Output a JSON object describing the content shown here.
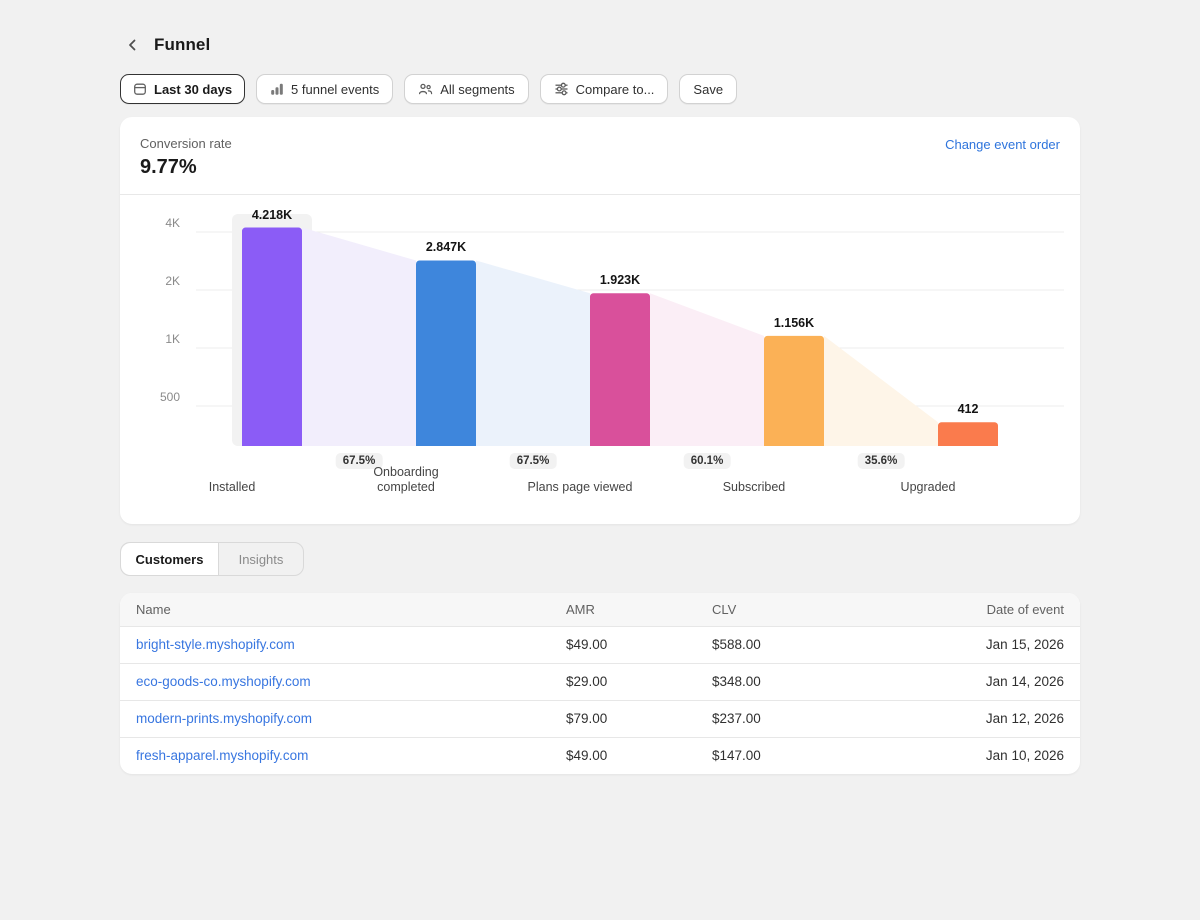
{
  "header": {
    "title": "Funnel"
  },
  "toolbar": {
    "buttons": [
      {
        "label": "Last 30 days",
        "icon": "calendar-icon",
        "active": true
      },
      {
        "label": "5 funnel events",
        "icon": "bar-chart-icon",
        "active": false
      },
      {
        "label": "All segments",
        "icon": "people-icon",
        "active": false
      },
      {
        "label": "Compare to...",
        "icon": "sliders-icon",
        "active": false
      },
      {
        "label": "Save",
        "icon": "",
        "active": false
      }
    ]
  },
  "funnel": {
    "metric_label": "Conversion rate",
    "metric_value": "9.77%",
    "change_order_label": "Change event order",
    "link_color": "#2e74dc"
  },
  "chart_data": {
    "type": "bar",
    "subtype": "funnel",
    "title": "Conversion rate 9.77%",
    "categories": [
      "Installed",
      "Onboarding completed",
      "Plans page viewed",
      "Subscribed",
      "Upgraded"
    ],
    "values": [
      4218,
      2847,
      1923,
      1156,
      412
    ],
    "value_labels": [
      "4.218K",
      "2.847K",
      "1.923K",
      "1.156K",
      "412"
    ],
    "step_conversion_rates": [
      "67.5%",
      "67.5%",
      "60.1%",
      "35.6%"
    ],
    "bar_colors": [
      "#8b5cf6",
      "#3e86dc",
      "#d9509b",
      "#fbb156",
      "#fa7b4d"
    ],
    "area_colors": [
      "#f2eefc",
      "#ebf2fb",
      "#fbeef6",
      "#fef5e8"
    ],
    "y_ticks": [
      "4K",
      "2K",
      "1K",
      "500"
    ],
    "y_tick_values": [
      4000,
      2000,
      1000,
      500
    ],
    "scale": "log2",
    "grid": true,
    "highlighted_index": 0,
    "highlight_color": "#f2f2f2",
    "grid_color": "#ececec"
  },
  "tabs": [
    {
      "label": "Customers",
      "active": true
    },
    {
      "label": "Insights",
      "active": false
    }
  ],
  "table": {
    "columns": [
      {
        "label": "Name",
        "key": "name",
        "align": "left",
        "link": true
      },
      {
        "label": "AMR",
        "key": "amr",
        "align": "left",
        "link": false
      },
      {
        "label": "CLV",
        "key": "clv",
        "align": "left",
        "link": false
      },
      {
        "label": "Date of event",
        "key": "date",
        "align": "right",
        "link": false
      }
    ],
    "rows": [
      {
        "name": "bright-style.myshopify.com",
        "amr": "$49.00",
        "clv": "$588.00",
        "date": "Jan 15, 2026"
      },
      {
        "name": "eco-goods-co.myshopify.com",
        "amr": "$29.00",
        "clv": "$348.00",
        "date": "Jan 14, 2026"
      },
      {
        "name": "modern-prints.myshopify.com",
        "amr": "$79.00",
        "clv": "$237.00",
        "date": "Jan 12, 2026"
      },
      {
        "name": "fresh-apparel.myshopify.com",
        "amr": "$49.00",
        "clv": "$147.00",
        "date": "Jan 10, 2026"
      }
    ]
  }
}
